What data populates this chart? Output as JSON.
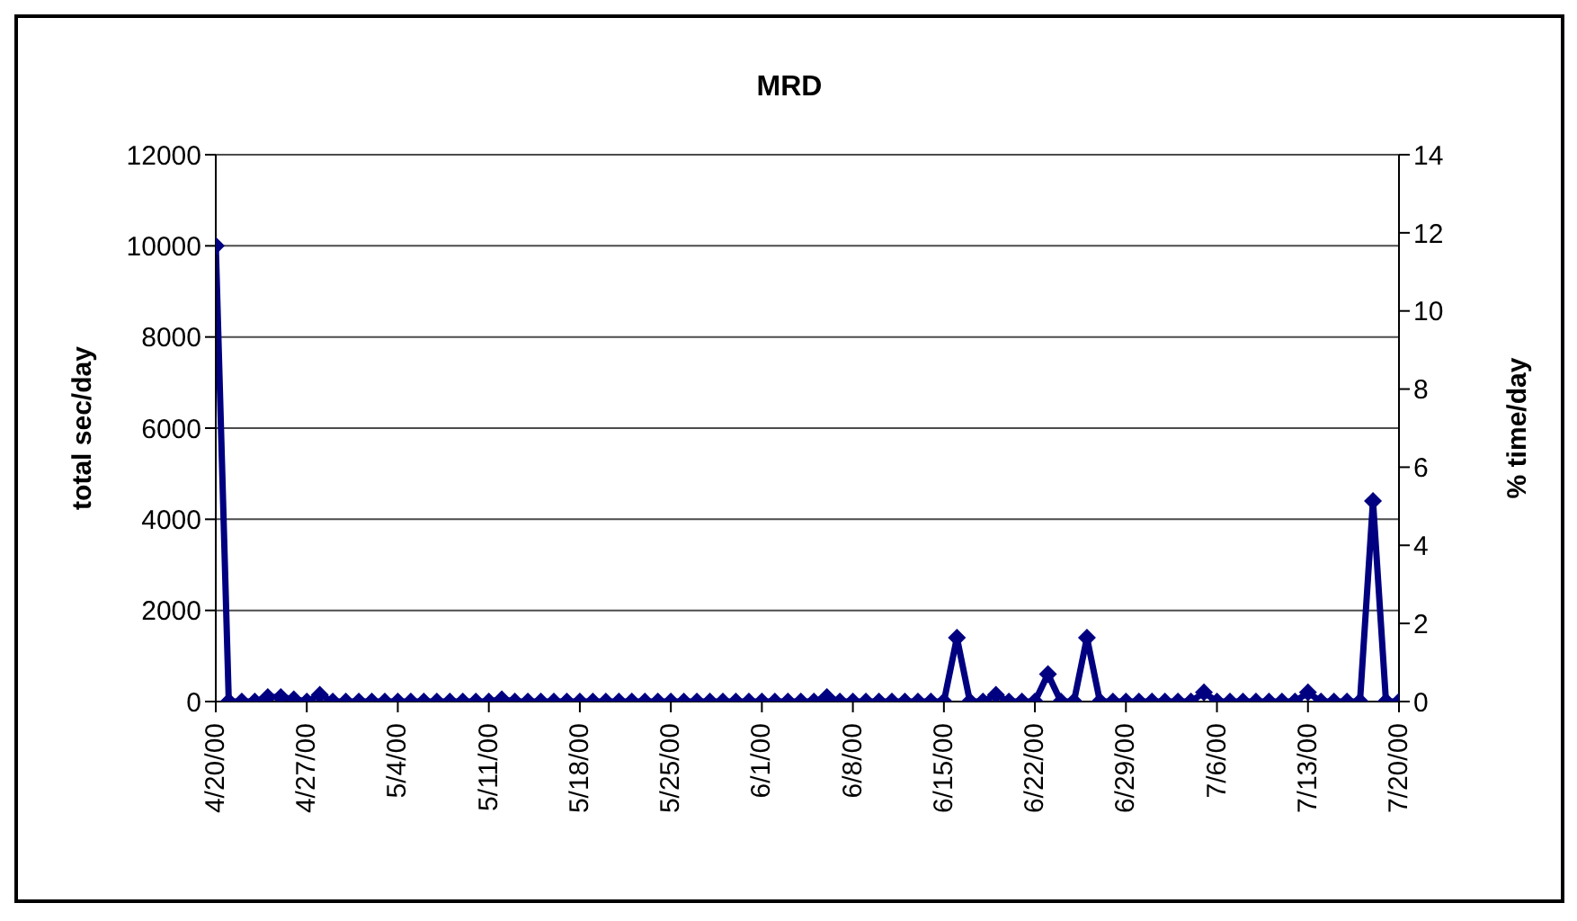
{
  "chart_data": {
    "type": "line",
    "title": "MRD",
    "ylabel": "total sec/day",
    "y2label": "% time/day",
    "x": [
      "2000-04-20",
      "2000-04-21",
      "2000-04-22",
      "2000-04-23",
      "2000-04-24",
      "2000-04-25",
      "2000-04-26",
      "2000-04-27",
      "2000-04-28",
      "2000-04-29",
      "2000-04-30",
      "2000-05-01",
      "2000-05-02",
      "2000-05-03",
      "2000-05-04",
      "2000-05-05",
      "2000-05-06",
      "2000-05-07",
      "2000-05-08",
      "2000-05-09",
      "2000-05-10",
      "2000-05-11",
      "2000-05-12",
      "2000-05-13",
      "2000-05-14",
      "2000-05-15",
      "2000-05-16",
      "2000-05-17",
      "2000-05-18",
      "2000-05-19",
      "2000-05-20",
      "2000-05-21",
      "2000-05-22",
      "2000-05-23",
      "2000-05-24",
      "2000-05-25",
      "2000-05-26",
      "2000-05-27",
      "2000-05-28",
      "2000-05-29",
      "2000-05-30",
      "2000-05-31",
      "2000-06-01",
      "2000-06-02",
      "2000-06-03",
      "2000-06-04",
      "2000-06-05",
      "2000-06-06",
      "2000-06-07",
      "2000-06-08",
      "2000-06-09",
      "2000-06-10",
      "2000-06-11",
      "2000-06-12",
      "2000-06-13",
      "2000-06-14",
      "2000-06-15",
      "2000-06-16",
      "2000-06-17",
      "2000-06-18",
      "2000-06-19",
      "2000-06-20",
      "2000-06-21",
      "2000-06-22",
      "2000-06-23",
      "2000-06-24",
      "2000-06-25",
      "2000-06-26",
      "2000-06-27",
      "2000-06-28",
      "2000-06-29",
      "2000-06-30",
      "2000-07-01",
      "2000-07-02",
      "2000-07-03",
      "2000-07-04",
      "2000-07-05",
      "2000-07-06",
      "2000-07-07",
      "2000-07-08",
      "2000-07-09",
      "2000-07-10",
      "2000-07-11",
      "2000-07-12",
      "2000-07-13",
      "2000-07-14",
      "2000-07-15",
      "2000-07-16",
      "2000-07-17",
      "2000-07-18",
      "2000-07-19",
      "2000-07-20"
    ],
    "series": [
      {
        "color": "#000080",
        "values": [
          10000,
          0,
          0,
          0,
          100,
          100,
          50,
          0,
          150,
          0,
          0,
          0,
          0,
          0,
          0,
          0,
          0,
          0,
          0,
          0,
          0,
          0,
          50,
          0,
          0,
          0,
          0,
          0,
          0,
          0,
          0,
          0,
          0,
          0,
          0,
          0,
          0,
          0,
          0,
          0,
          0,
          0,
          0,
          0,
          0,
          0,
          0,
          100,
          0,
          0,
          0,
          0,
          0,
          0,
          0,
          0,
          0,
          1400,
          0,
          0,
          150,
          0,
          0,
          0,
          600,
          0,
          0,
          1400,
          0,
          0,
          0,
          0,
          0,
          0,
          0,
          0,
          200,
          0,
          0,
          0,
          0,
          0,
          0,
          0,
          200,
          0,
          0,
          0,
          0,
          4400,
          0,
          0
        ]
      }
    ],
    "xlim": [
      "2000-04-20",
      "2000-07-20"
    ],
    "xticks": [
      {
        "value": "2000-04-20",
        "label": "4/20/00"
      },
      {
        "value": "2000-04-27",
        "label": "4/27/00"
      },
      {
        "value": "2000-05-04",
        "label": "5/4/00"
      },
      {
        "value": "2000-05-11",
        "label": "5/11/00"
      },
      {
        "value": "2000-05-18",
        "label": "5/18/00"
      },
      {
        "value": "2000-05-25",
        "label": "5/25/00"
      },
      {
        "value": "2000-06-01",
        "label": "6/1/00"
      },
      {
        "value": "2000-06-08",
        "label": "6/8/00"
      },
      {
        "value": "2000-06-15",
        "label": "6/15/00"
      },
      {
        "value": "2000-06-22",
        "label": "6/22/00"
      },
      {
        "value": "2000-06-29",
        "label": "6/29/00"
      },
      {
        "value": "2000-07-06",
        "label": "7/6/00"
      },
      {
        "value": "2000-07-13",
        "label": "7/13/00"
      },
      {
        "value": "2000-07-20",
        "label": "7/20/00"
      }
    ],
    "ylim": [
      0,
      12000
    ],
    "yticks": [
      0,
      2000,
      4000,
      6000,
      8000,
      10000,
      12000
    ],
    "y2lim": [
      0,
      14
    ],
    "y2ticks": [
      0,
      2,
      4,
      6,
      8,
      10,
      12,
      14
    ],
    "grid": "y",
    "legend": false,
    "marker": "diamond",
    "line_style": "solid"
  }
}
